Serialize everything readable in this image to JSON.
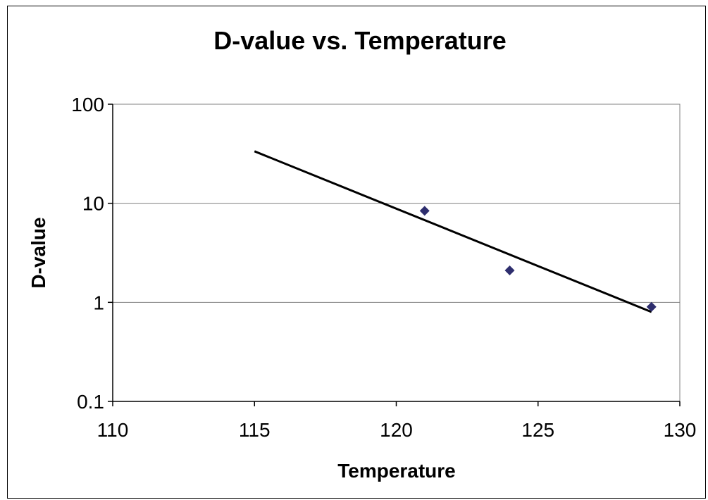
{
  "chart_data": {
    "type": "scatter",
    "title": "D-value vs. Temperature",
    "xlabel": "Temperature",
    "ylabel": "D-value",
    "xlim": [
      110,
      130
    ],
    "ylim": [
      0.1,
      100
    ],
    "y_scale": "log",
    "x_ticks": [
      "110",
      "115",
      "120",
      "125",
      "130"
    ],
    "y_ticks": [
      "0.1",
      "1",
      "10",
      "100"
    ],
    "grid": "horizontal major gridlines",
    "legend": "none",
    "series": [
      {
        "marker": "diamond",
        "color": "#2e2e6e",
        "x": [
          121,
          124,
          129
        ],
        "y": [
          8.4,
          2.1,
          0.9
        ]
      }
    ],
    "trendline": {
      "type": "exponential",
      "color": "#000000",
      "x": [
        115,
        129
      ],
      "y": [
        33.5,
        0.8
      ]
    }
  }
}
